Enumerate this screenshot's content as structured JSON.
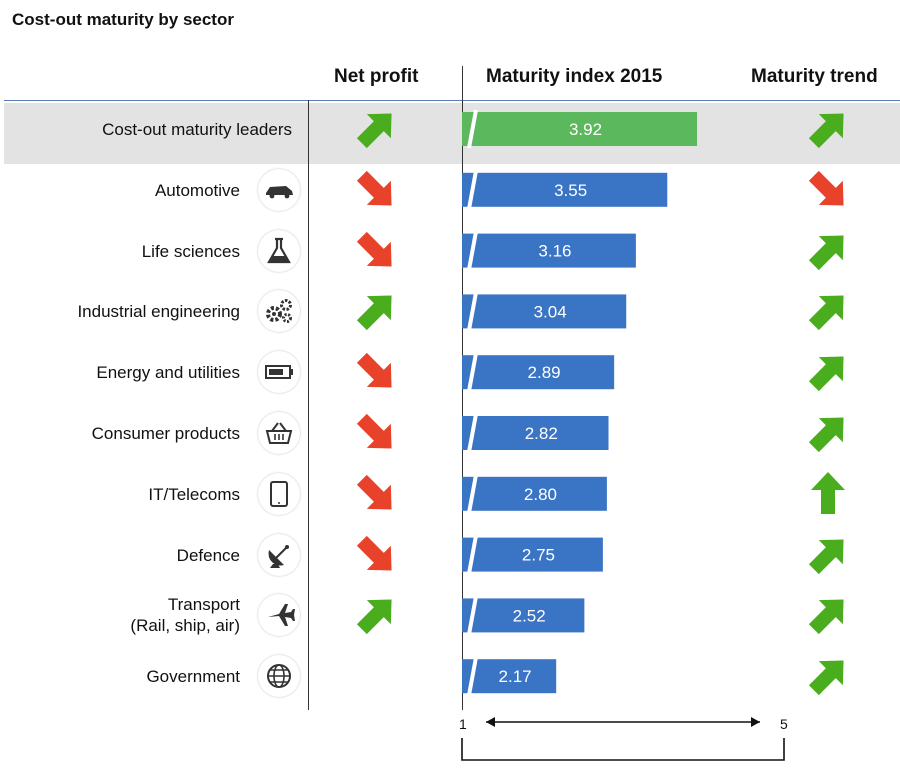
{
  "title": "Cost-out maturity by sector",
  "columns": {
    "net_profit": "Net profit",
    "maturity_index": "Maturity index 2015",
    "maturity_trend": "Maturity trend"
  },
  "axis": {
    "min_label": "1",
    "max_label": "5"
  },
  "colors": {
    "leader_bar": "#5cb85c",
    "sector_bar": "#3a74c4",
    "up_arrow": "#4aad1d",
    "down_arrow": "#e8422a"
  },
  "chart_data": {
    "type": "bar",
    "orientation": "horizontal",
    "xlim": [
      1,
      5
    ],
    "categories": [
      "Cost-out maturity leaders",
      "Automotive",
      "Life sciences",
      "Industrial engineering",
      "Energy and utilities",
      "Consumer products",
      "IT/Telecoms",
      "Defence",
      "Transport (Rail, ship, air)",
      "Government"
    ],
    "values": [
      3.92,
      3.55,
      3.16,
      3.04,
      2.89,
      2.82,
      2.8,
      2.75,
      2.52,
      2.17
    ],
    "value_labels": [
      "3.92",
      "3.55",
      "3.16",
      "3.04",
      "2.89",
      "2.82",
      "2.80",
      "2.75",
      "2.52",
      "2.17"
    ]
  },
  "rows": [
    {
      "label": "Cost-out maturity leaders",
      "label2": "",
      "icon": "",
      "net_profit": "up-right",
      "trend": "up-right",
      "leader": true
    },
    {
      "label": "Automotive",
      "label2": "",
      "icon": "car-icon",
      "net_profit": "down-right",
      "trend": "down-right"
    },
    {
      "label": "Life sciences",
      "label2": "",
      "icon": "flask-icon",
      "net_profit": "down-right",
      "trend": "up-right"
    },
    {
      "label": "Industrial engineering",
      "label2": "",
      "icon": "gears-icon",
      "net_profit": "up-right",
      "trend": "up-right"
    },
    {
      "label": "Energy and utilities",
      "label2": "",
      "icon": "battery-icon",
      "net_profit": "down-right",
      "trend": "up-right"
    },
    {
      "label": "Consumer products",
      "label2": "",
      "icon": "basket-icon",
      "net_profit": "down-right",
      "trend": "up-right"
    },
    {
      "label": "IT/Telecoms",
      "label2": "",
      "icon": "tablet-icon",
      "net_profit": "down-right",
      "trend": "up"
    },
    {
      "label": "Defence",
      "label2": "",
      "icon": "satellite-dish-icon",
      "net_profit": "down-right",
      "trend": "up-right"
    },
    {
      "label": "Transport",
      "label2": "(Rail, ship, air)",
      "icon": "airplane-icon",
      "net_profit": "up-right",
      "trend": "up-right"
    },
    {
      "label": "Government",
      "label2": "",
      "icon": "globe-icon",
      "net_profit": "",
      "trend": "up-right"
    }
  ]
}
